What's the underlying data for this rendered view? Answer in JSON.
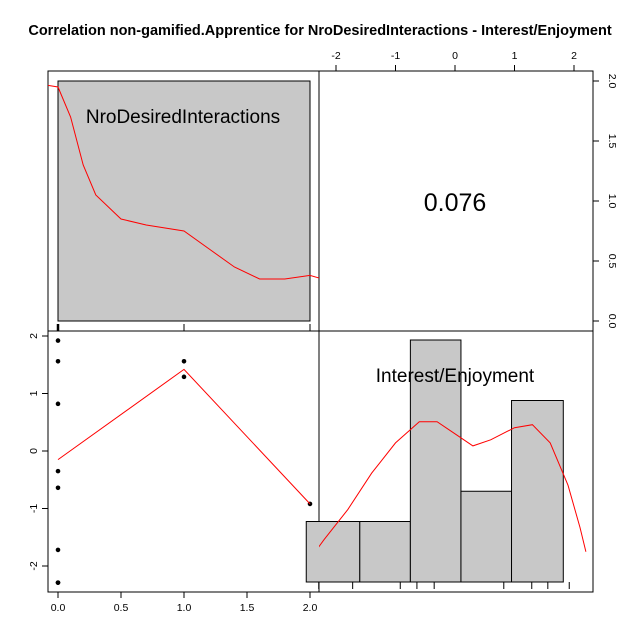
{
  "chart_data": {
    "type": "scatter",
    "title": "Correlation non-gamified.Apprentice for NroDesiredInteractions - Interest/Enjoyment",
    "variables": [
      "NroDesiredInteractions",
      "Interest/Enjoyment"
    ],
    "correlation": "0.076",
    "scatter": {
      "x": [
        0,
        0,
        0,
        0,
        0,
        0,
        0,
        0,
        1,
        1,
        2
      ],
      "y": [
        1.92,
        1.56,
        0.82,
        -0.35,
        -0.64,
        -1.72,
        -2.29,
        -2.29,
        1.56,
        1.29,
        -0.92
      ],
      "xlim": [
        0,
        2
      ],
      "ylim": [
        -2,
        2
      ],
      "x_ticks": [
        "0.0",
        "0.5",
        "1.0",
        "1.5",
        "2.0"
      ],
      "y_ticks": [
        "-2",
        "-1",
        "0",
        "1",
        "2"
      ],
      "loess": {
        "x": [
          0,
          1,
          2
        ],
        "y": [
          -0.15,
          1.42,
          -0.92
        ]
      }
    },
    "histogram_x": {
      "bars": [
        {
          "from": 0,
          "to": 2,
          "density": 1
        }
      ],
      "density_curve": [
        [
          -0.3,
          2.0
        ],
        [
          0.0,
          1.95
        ],
        [
          0.1,
          1.7
        ],
        [
          0.2,
          1.3
        ],
        [
          0.3,
          1.05
        ],
        [
          0.5,
          0.85
        ],
        [
          0.7,
          0.8
        ],
        [
          1.0,
          0.75
        ],
        [
          1.2,
          0.6
        ],
        [
          1.4,
          0.45
        ],
        [
          1.6,
          0.35
        ],
        [
          1.8,
          0.35
        ],
        [
          2.0,
          0.38
        ],
        [
          2.1,
          0.35
        ]
      ]
    },
    "histogram_y": {
      "right_ticks": [
        "0.0",
        "0.5",
        "1.0",
        "1.5",
        "2.0"
      ],
      "top_ticks": [
        "-2",
        "-1",
        "0",
        "1",
        "2"
      ],
      "bars": [
        {
          "from": -2.5,
          "to": -1.6,
          "count": 1
        },
        {
          "from": -1.6,
          "to": -0.75,
          "count": 1
        },
        {
          "from": -0.75,
          "to": 0.1,
          "count": 4
        },
        {
          "from": 0.1,
          "to": 0.95,
          "count": 1.5
        },
        {
          "from": 0.95,
          "to": 1.82,
          "count": 3
        }
      ],
      "rug": [
        -2.29,
        -1.72,
        -0.92,
        -0.64,
        -0.35,
        0.82,
        1.29,
        1.56,
        1.92
      ],
      "density_curve": [
        [
          -2.7,
          0.05
        ],
        [
          -2.5,
          0.3
        ],
        [
          -2.2,
          0.7
        ],
        [
          -1.8,
          1.2
        ],
        [
          -1.4,
          1.8
        ],
        [
          -1.0,
          2.3
        ],
        [
          -0.6,
          2.65
        ],
        [
          -0.3,
          2.65
        ],
        [
          0.0,
          2.45
        ],
        [
          0.3,
          2.25
        ],
        [
          0.6,
          2.35
        ],
        [
          1.0,
          2.55
        ],
        [
          1.3,
          2.6
        ],
        [
          1.6,
          2.3
        ],
        [
          1.9,
          1.6
        ],
        [
          2.1,
          0.9
        ],
        [
          2.2,
          0.5
        ]
      ]
    }
  }
}
